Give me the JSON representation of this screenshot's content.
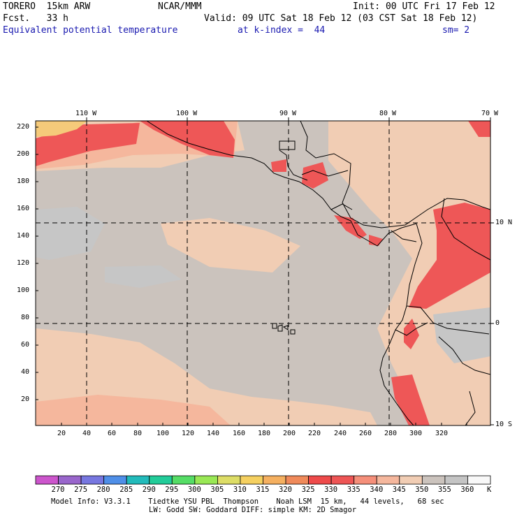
{
  "header": {
    "model": "TORERO  15km ARW",
    "center": "NCAR/MMM",
    "init": "Init: 00 UTC Fri 17 Feb 12",
    "fcst": "Fcst.   33 h",
    "valid": "Valid: 09 UTC Sat 18 Feb 12 (03 CST Sat 18 Feb 12)",
    "field": "Equivalent potential temperature",
    "level": "at k-index =  44",
    "smooth": "sm= 2"
  },
  "map": {
    "lon_labels": [
      "110 W",
      "100 W",
      "90 W",
      "80 W",
      "70 W"
    ],
    "lat_labels": [
      "10 N",
      "0",
      "10 S"
    ],
    "x_ticks": [
      "20",
      "40",
      "60",
      "80",
      "100",
      "120",
      "140",
      "160",
      "180",
      "200",
      "220",
      "240",
      "260",
      "280",
      "300",
      "320"
    ],
    "y_ticks": [
      "220",
      "200",
      "180",
      "160",
      "140",
      "120",
      "100",
      "80",
      "60",
      "40",
      "20"
    ]
  },
  "legend": {
    "colors": [
      "#cc55cc",
      "#9966cc",
      "#7777e0",
      "#4f8fe8",
      "#22bbbb",
      "#22cc99",
      "#55dd66",
      "#99e855",
      "#dddd66",
      "#f5d060",
      "#f5b060",
      "#f08a5a",
      "#ee4a4a",
      "#ee5555",
      "#f58f7a",
      "#f5b79d",
      "#f1cdb4",
      "#cbc3bd",
      "#c4c4c4",
      "#f8f8f8"
    ],
    "labels": [
      "270",
      "275",
      "280",
      "285",
      "290",
      "295",
      "300",
      "305",
      "310",
      "315",
      "320",
      "325",
      "330",
      "335",
      "340",
      "345",
      "350",
      "355",
      "360"
    ],
    "unit": "K"
  },
  "footer": {
    "line1": "Model Info: V3.3.1    Tiedtke YSU PBL  Thompson    Noah LSM  15 km,   44 levels,   68 sec",
    "line2": "LW: Godd SW: Goddard DIFF: simple KM: 2D Smagor"
  },
  "colors": {
    "grey": "#cbc3bd",
    "peach": "#f1cdb4",
    "salmon": "#f5b79d",
    "lightgrey": "#c6c6c6",
    "red": "#ee5757",
    "yellow": "#f5ca7a",
    "legend_blue": "#1a1ab0"
  }
}
